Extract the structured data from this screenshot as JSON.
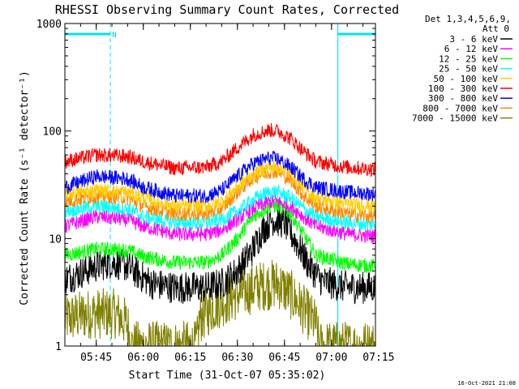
{
  "chart_data": {
    "type": "line",
    "title": "RHESSI Observing Summary Count Rates, Corrected",
    "xlabel": "Start Time (31-Oct-07 05:35:02)",
    "ylabel": "Corrected Count Rate (s⁻¹ detector⁻¹)",
    "y_scale": "log",
    "ylim": [
      1,
      1000
    ],
    "y_ticks": [
      {
        "value": 1,
        "label": "1"
      },
      {
        "value": 10,
        "label": "10"
      },
      {
        "value": 100,
        "label": "100"
      },
      {
        "value": 1000,
        "label": "1000"
      }
    ],
    "xlim_minutes": [
      0,
      99
    ],
    "x_ticks": [
      {
        "minute": 10,
        "label": "05:45"
      },
      {
        "minute": 25,
        "label": "06:00"
      },
      {
        "minute": 40,
        "label": "06:15"
      },
      {
        "minute": 55,
        "label": "06:30"
      },
      {
        "minute": 70,
        "label": "06:45"
      },
      {
        "minute": 85,
        "label": "07:00"
      },
      {
        "minute": 100,
        "label": "07:15"
      }
    ],
    "legend_header": [
      "Det 1,3,4,5,6,9,",
      "Att 0"
    ],
    "legend_placement": "top-right outside",
    "series": [
      {
        "name": "3 - 6 keV",
        "color": "#000000",
        "points": [
          [
            0,
            4.2
          ],
          [
            5,
            4.8
          ],
          [
            10,
            5.5
          ],
          [
            15,
            6
          ],
          [
            20,
            5.5
          ],
          [
            24,
            4.5
          ],
          [
            28,
            3.8
          ],
          [
            35,
            3.5
          ],
          [
            45,
            3.5
          ],
          [
            50,
            3.8
          ],
          [
            55,
            5
          ],
          [
            60,
            8
          ],
          [
            63,
            12
          ],
          [
            66,
            15
          ],
          [
            70,
            14
          ],
          [
            74,
            9
          ],
          [
            78,
            5.5
          ],
          [
            82,
            4
          ],
          [
            88,
            3.6
          ],
          [
            94,
            3.5
          ],
          [
            99,
            3.5
          ]
        ]
      },
      {
        "name": "6 - 12 keV",
        "color": "#ff00ff",
        "points": [
          [
            0,
            13
          ],
          [
            10,
            16
          ],
          [
            20,
            15
          ],
          [
            25,
            13
          ],
          [
            35,
            11
          ],
          [
            45,
            11
          ],
          [
            50,
            12
          ],
          [
            55,
            15
          ],
          [
            60,
            19
          ],
          [
            65,
            22
          ],
          [
            68,
            22
          ],
          [
            72,
            20
          ],
          [
            76,
            16
          ],
          [
            80,
            13
          ],
          [
            90,
            11
          ],
          [
            99,
            10.5
          ]
        ]
      },
      {
        "name": "12 - 25 keV",
        "color": "#00ff00",
        "points": [
          [
            0,
            7
          ],
          [
            10,
            8
          ],
          [
            20,
            7.8
          ],
          [
            25,
            6.8
          ],
          [
            35,
            6
          ],
          [
            45,
            6
          ],
          [
            50,
            7
          ],
          [
            55,
            10
          ],
          [
            60,
            16
          ],
          [
            65,
            20
          ],
          [
            68,
            20
          ],
          [
            72,
            17
          ],
          [
            76,
            11
          ],
          [
            80,
            7
          ],
          [
            90,
            5.8
          ],
          [
            99,
            5.5
          ]
        ]
      },
      {
        "name": "25 - 50 keV",
        "color": "#00ffff",
        "points": [
          [
            0,
            18
          ],
          [
            10,
            20
          ],
          [
            20,
            19
          ],
          [
            25,
            16
          ],
          [
            35,
            14
          ],
          [
            45,
            14
          ],
          [
            50,
            15
          ],
          [
            55,
            18
          ],
          [
            60,
            23
          ],
          [
            65,
            27
          ],
          [
            68,
            27
          ],
          [
            72,
            24
          ],
          [
            76,
            19
          ],
          [
            80,
            16
          ],
          [
            90,
            14
          ],
          [
            99,
            13.5
          ]
        ]
      },
      {
        "name": "50 - 100 keV",
        "color": "#ffcc00",
        "points": [
          [
            0,
            26
          ],
          [
            10,
            28
          ],
          [
            20,
            27
          ],
          [
            25,
            24
          ],
          [
            35,
            20
          ],
          [
            45,
            20
          ],
          [
            50,
            22
          ],
          [
            55,
            30
          ],
          [
            60,
            40
          ],
          [
            65,
            46
          ],
          [
            68,
            46
          ],
          [
            72,
            40
          ],
          [
            76,
            30
          ],
          [
            80,
            24
          ],
          [
            90,
            21
          ],
          [
            99,
            20
          ]
        ]
      },
      {
        "name": "100 - 300 keV",
        "color": "#ff0000",
        "points": [
          [
            0,
            52
          ],
          [
            10,
            60
          ],
          [
            20,
            58
          ],
          [
            25,
            52
          ],
          [
            35,
            45
          ],
          [
            45,
            46
          ],
          [
            50,
            52
          ],
          [
            55,
            70
          ],
          [
            60,
            92
          ],
          [
            65,
            102
          ],
          [
            68,
            100
          ],
          [
            72,
            85
          ],
          [
            76,
            65
          ],
          [
            80,
            52
          ],
          [
            90,
            46
          ],
          [
            99,
            44
          ]
        ]
      },
      {
        "name": "300 - 800 keV",
        "color": "#0000ff",
        "points": [
          [
            0,
            30
          ],
          [
            10,
            38
          ],
          [
            20,
            36
          ],
          [
            25,
            30
          ],
          [
            35,
            25
          ],
          [
            45,
            25
          ],
          [
            50,
            28
          ],
          [
            55,
            38
          ],
          [
            60,
            50
          ],
          [
            65,
            56
          ],
          [
            68,
            55
          ],
          [
            72,
            46
          ],
          [
            76,
            36
          ],
          [
            80,
            30
          ],
          [
            90,
            27
          ],
          [
            99,
            26
          ]
        ]
      },
      {
        "name": "800 - 7000 keV",
        "color": "#ff8800",
        "points": [
          [
            0,
            22
          ],
          [
            10,
            25
          ],
          [
            20,
            24
          ],
          [
            25,
            20
          ],
          [
            35,
            17
          ],
          [
            45,
            17
          ],
          [
            50,
            19
          ],
          [
            55,
            27
          ],
          [
            60,
            37
          ],
          [
            65,
            42
          ],
          [
            68,
            42
          ],
          [
            72,
            35
          ],
          [
            76,
            25
          ],
          [
            80,
            20
          ],
          [
            90,
            17
          ],
          [
            99,
            16
          ]
        ]
      },
      {
        "name": "7000 - 15000 keV",
        "color": "#808000",
        "points": [
          [
            0,
            1.8
          ],
          [
            8,
            2
          ],
          [
            16,
            2
          ],
          [
            20,
            1.6
          ],
          [
            21,
            1
          ],
          [
            42,
            1
          ],
          [
            43,
            1.8
          ],
          [
            48,
            2.4
          ],
          [
            55,
            3
          ],
          [
            62,
            3.6
          ],
          [
            68,
            3.8
          ],
          [
            72,
            3
          ],
          [
            76,
            2.2
          ],
          [
            80,
            1.6
          ],
          [
            81,
            1
          ],
          [
            99,
            1
          ]
        ]
      }
    ],
    "annotations": {
      "attenuator_state": "N",
      "top_bars_minutes": [
        [
          0,
          14.5
        ],
        [
          87,
          99
        ]
      ],
      "vertical_dashed_minutes": [
        14.5,
        87,
        99
      ]
    }
  },
  "footer": {
    "timestamp": "16-Oct-2021 21:08"
  }
}
